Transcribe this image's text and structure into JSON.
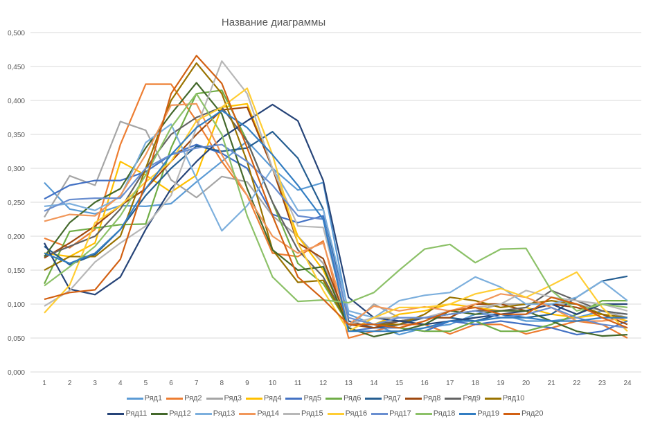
{
  "chart_data": {
    "type": "line",
    "title": "Название диаграммы",
    "xlabel": "",
    "ylabel": "",
    "categories": [
      "1",
      "2",
      "3",
      "4",
      "5",
      "6",
      "7",
      "8",
      "9",
      "10",
      "11",
      "12",
      "13",
      "14",
      "15",
      "16",
      "17",
      "18",
      "19",
      "20",
      "21",
      "22",
      "23",
      "24"
    ],
    "ylim": [
      0,
      0.5
    ],
    "yticks": [
      "0,000",
      "0,050",
      "0,100",
      "0,150",
      "0,200",
      "0,250",
      "0,300",
      "0,350",
      "0,400",
      "0,450",
      "0,500"
    ],
    "grid": true,
    "legend": "bottom",
    "series": [
      {
        "name": "Ряд1",
        "color": "#5B9BD5",
        "values": [
          0.279,
          0.24,
          0.233,
          0.245,
          0.244,
          0.248,
          0.28,
          0.31,
          0.34,
          0.3,
          0.268,
          0.279,
          0.085,
          0.07,
          0.055,
          0.065,
          0.07,
          0.085,
          0.085,
          0.075,
          0.075,
          0.08,
          0.09,
          0.085
        ]
      },
      {
        "name": "Ряд2",
        "color": "#ED7D31",
        "values": [
          0.197,
          0.183,
          0.21,
          0.335,
          0.424,
          0.424,
          0.37,
          0.31,
          0.26,
          0.175,
          0.17,
          0.193,
          0.05,
          0.06,
          0.07,
          0.07,
          0.056,
          0.07,
          0.07,
          0.056,
          0.065,
          0.075,
          0.07,
          0.05
        ]
      },
      {
        "name": "Ряд3",
        "color": "#A5A5A5",
        "values": [
          0.228,
          0.289,
          0.275,
          0.369,
          0.356,
          0.283,
          0.257,
          0.288,
          0.28,
          0.23,
          0.2,
          0.16,
          0.065,
          0.1,
          0.08,
          0.08,
          0.085,
          0.09,
          0.1,
          0.1,
          0.1,
          0.1,
          0.09,
          0.08
        ]
      },
      {
        "name": "Ряд4",
        "color": "#FFC000",
        "values": [
          0.175,
          0.17,
          0.19,
          0.31,
          0.29,
          0.265,
          0.29,
          0.39,
          0.395,
          0.3,
          0.2,
          0.15,
          0.07,
          0.07,
          0.085,
          0.09,
          0.1,
          0.095,
          0.09,
          0.095,
          0.085,
          0.08,
          0.085,
          0.075
        ]
      },
      {
        "name": "Ряд5",
        "color": "#4472C4",
        "values": [
          0.255,
          0.275,
          0.282,
          0.282,
          0.295,
          0.32,
          0.335,
          0.322,
          0.3,
          0.232,
          0.22,
          0.23,
          0.06,
          0.065,
          0.065,
          0.06,
          0.075,
          0.07,
          0.075,
          0.07,
          0.065,
          0.055,
          0.06,
          0.075
        ]
      },
      {
        "name": "Ряд6",
        "color": "#70AD47",
        "values": [
          0.13,
          0.207,
          0.212,
          0.217,
          0.218,
          0.33,
          0.41,
          0.415,
          0.34,
          0.25,
          0.16,
          0.13,
          0.07,
          0.07,
          0.065,
          0.06,
          0.06,
          0.075,
          0.06,
          0.06,
          0.07,
          0.085,
          0.105,
          0.105
        ]
      },
      {
        "name": "Ряд7",
        "color": "#255E91",
        "values": [
          0.185,
          0.158,
          0.173,
          0.21,
          0.26,
          0.3,
          0.333,
          0.325,
          0.33,
          0.354,
          0.315,
          0.24,
          0.075,
          0.065,
          0.07,
          0.08,
          0.08,
          0.075,
          0.085,
          0.08,
          0.085,
          0.11,
          0.134,
          0.141
        ]
      },
      {
        "name": "Ряд8",
        "color": "#9E480E",
        "values": [
          0.168,
          0.19,
          0.215,
          0.245,
          0.27,
          0.31,
          0.35,
          0.386,
          0.39,
          0.3,
          0.19,
          0.167,
          0.07,
          0.065,
          0.075,
          0.08,
          0.08,
          0.1,
          0.1,
          0.09,
          0.1,
          0.095,
          0.085,
          0.07
        ]
      },
      {
        "name": "Ряд9",
        "color": "#636363",
        "values": [
          0.17,
          0.185,
          0.2,
          0.24,
          0.3,
          0.35,
          0.375,
          0.39,
          0.34,
          0.25,
          0.18,
          0.14,
          0.07,
          0.07,
          0.075,
          0.08,
          0.085,
          0.09,
          0.09,
          0.095,
          0.12,
          0.105,
          0.09,
          0.085
        ]
      },
      {
        "name": "Ряд10",
        "color": "#997300",
        "values": [
          0.15,
          0.17,
          0.17,
          0.2,
          0.3,
          0.4,
          0.455,
          0.41,
          0.31,
          0.18,
          0.132,
          0.135,
          0.07,
          0.07,
          0.07,
          0.085,
          0.11,
          0.105,
          0.095,
          0.1,
          0.105,
          0.1,
          0.085,
          0.08
        ]
      },
      {
        "name": "Ряд11",
        "color": "#264478",
        "values": [
          0.19,
          0.122,
          0.114,
          0.14,
          0.21,
          0.27,
          0.31,
          0.345,
          0.37,
          0.394,
          0.37,
          0.282,
          0.11,
          0.08,
          0.075,
          0.07,
          0.075,
          0.08,
          0.085,
          0.09,
          0.1,
          0.085,
          0.1,
          0.1
        ]
      },
      {
        "name": "Ряд12",
        "color": "#43682B",
        "values": [
          0.17,
          0.22,
          0.25,
          0.27,
          0.33,
          0.38,
          0.426,
          0.38,
          0.27,
          0.18,
          0.15,
          0.155,
          0.065,
          0.052,
          0.06,
          0.07,
          0.09,
          0.085,
          0.09,
          0.09,
          0.075,
          0.06,
          0.053,
          0.055
        ]
      },
      {
        "name": "Ряд13",
        "color": "#7CAFDD",
        "values": [
          0.244,
          0.248,
          0.238,
          0.258,
          0.338,
          0.365,
          0.285,
          0.208,
          0.245,
          0.3,
          0.238,
          0.239,
          0.09,
          0.08,
          0.105,
          0.113,
          0.117,
          0.14,
          0.125,
          0.1,
          0.1,
          0.11,
          0.134,
          0.105
        ]
      },
      {
        "name": "Ряд14",
        "color": "#F1975A",
        "values": [
          0.222,
          0.232,
          0.23,
          0.26,
          0.32,
          0.393,
          0.395,
          0.32,
          0.26,
          0.2,
          0.175,
          0.19,
          0.07,
          0.097,
          0.09,
          0.096,
          0.09,
          0.1,
          0.115,
          0.11,
          0.095,
          0.075,
          0.075,
          0.08
        ]
      },
      {
        "name": "Ряд15",
        "color": "#B7B7B7",
        "values": [
          0.097,
          0.12,
          0.162,
          0.19,
          0.215,
          0.26,
          0.36,
          0.458,
          0.41,
          0.3,
          0.215,
          0.213,
          0.07,
          0.08,
          0.08,
          0.08,
          0.09,
          0.095,
          0.1,
          0.12,
          0.11,
          0.105,
          0.1,
          0.09
        ]
      },
      {
        "name": "Ряд16",
        "color": "#FFCD33",
        "values": [
          0.087,
          0.128,
          0.22,
          0.245,
          0.28,
          0.31,
          0.37,
          0.39,
          0.418,
          0.32,
          0.19,
          0.12,
          0.06,
          0.08,
          0.095,
          0.095,
          0.1,
          0.115,
          0.123,
          0.11,
          0.128,
          0.147,
          0.095,
          0.06
        ]
      },
      {
        "name": "Ряд17",
        "color": "#698ED0",
        "values": [
          0.237,
          0.254,
          0.256,
          0.256,
          0.3,
          0.32,
          0.33,
          0.335,
          0.31,
          0.275,
          0.23,
          0.225,
          0.08,
          0.07,
          0.08,
          0.08,
          0.085,
          0.09,
          0.08,
          0.085,
          0.095,
          0.08,
          0.07,
          0.065
        ]
      },
      {
        "name": "Ряд18",
        "color": "#8CC168",
        "values": [
          0.127,
          0.155,
          0.185,
          0.23,
          0.29,
          0.36,
          0.41,
          0.35,
          0.23,
          0.14,
          0.104,
          0.106,
          0.102,
          0.117,
          0.15,
          0.181,
          0.188,
          0.161,
          0.181,
          0.182,
          0.12,
          0.09,
          0.1,
          0.095
        ]
      },
      {
        "name": "Ряд19",
        "color": "#327DC2",
        "values": [
          0.175,
          0.16,
          0.175,
          0.21,
          0.27,
          0.32,
          0.36,
          0.385,
          0.36,
          0.32,
          0.275,
          0.225,
          0.06,
          0.06,
          0.06,
          0.065,
          0.075,
          0.075,
          0.08,
          0.08,
          0.075,
          0.075,
          0.08,
          0.08
        ]
      },
      {
        "name": "Ряд20",
        "color": "#D26012",
        "values": [
          0.107,
          0.117,
          0.121,
          0.166,
          0.28,
          0.41,
          0.466,
          0.425,
          0.33,
          0.23,
          0.14,
          0.107,
          0.07,
          0.07,
          0.065,
          0.075,
          0.09,
          0.095,
          0.085,
          0.085,
          0.11,
          0.1,
          0.08,
          0.065
        ]
      }
    ]
  }
}
